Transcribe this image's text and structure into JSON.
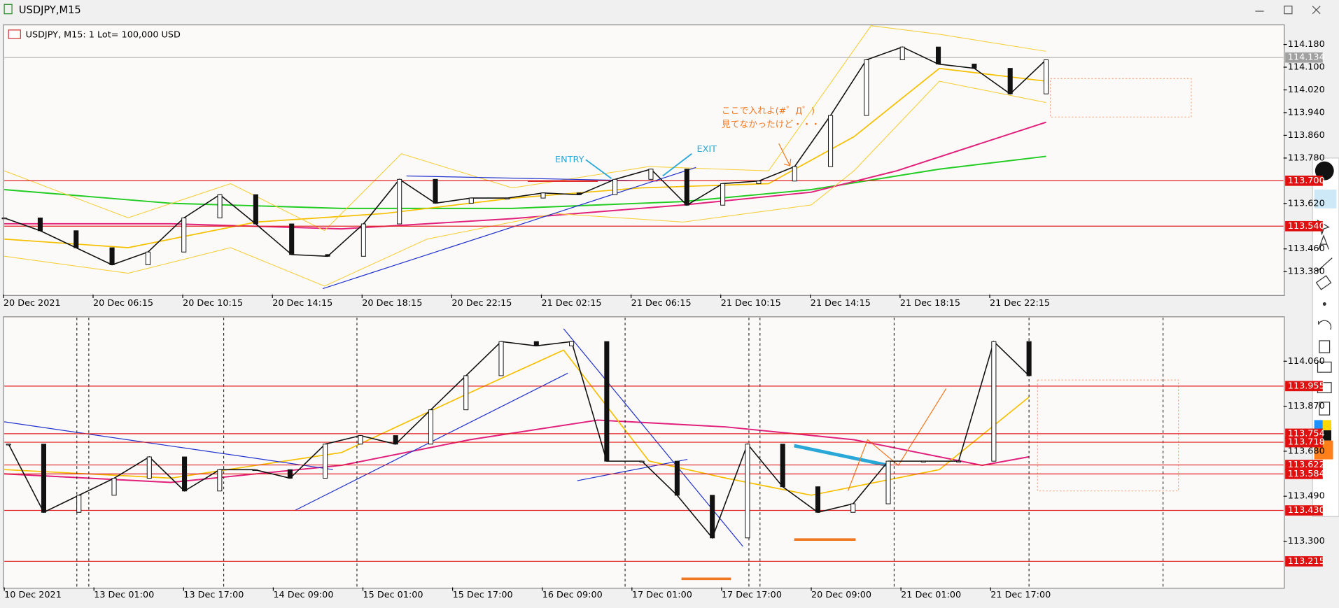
{
  "window": {
    "title": "USDJPY,M15"
  },
  "chart_header": "USDJPY, M15:  1 Lot= 100,000 USD",
  "annotations": {
    "entry": "ENTRY",
    "exit": "EXIT",
    "note_line1": "ここで入れよ(#゜Д゜)",
    "note_line2": "見てなかったけど・・・"
  },
  "panels": [
    {
      "ylim": [
        113.299,
        114.246
      ],
      "yticks": [
        {
          "value": 114.18,
          "label": "114.180"
        },
        {
          "value": 114.1,
          "label": "114.100"
        },
        {
          "value": 114.02,
          "label": "114.020"
        },
        {
          "value": 113.94,
          "label": "113.940"
        },
        {
          "value": 113.86,
          "label": "113.860"
        },
        {
          "value": 113.78,
          "label": "113.780"
        },
        {
          "value": 113.62,
          "label": "113.620"
        },
        {
          "value": 113.46,
          "label": "113.460"
        },
        {
          "value": 113.38,
          "label": "113.380"
        }
      ],
      "levels": [
        {
          "value": 113.7,
          "label": "113.700"
        },
        {
          "value": 113.54,
          "label": "113.540"
        }
      ],
      "current": {
        "value": 114.134,
        "label": "114.134"
      },
      "time_labels": [
        "20 Dec 2021",
        "20 Dec 06:15",
        "20 Dec 10:15",
        "20 Dec 14:15",
        "20 Dec 18:15",
        "20 Dec 22:15",
        "21 Dec 02:15",
        "21 Dec 06:15",
        "21 Dec 10:15",
        "21 Dec 14:15",
        "21 Dec 18:15",
        "21 Dec 22:15"
      ],
      "close": [
        113.569,
        113.524,
        113.464,
        113.404,
        113.449,
        113.569,
        113.651,
        113.548,
        113.44,
        113.434,
        113.548,
        113.705,
        113.621,
        113.639,
        113.639,
        113.657,
        113.651,
        113.705,
        113.741,
        113.614,
        113.69,
        113.699,
        113.75,
        113.93,
        114.126,
        114.171,
        114.111,
        114.096,
        114.006,
        114.126
      ]
    },
    {
      "ylim": [
        113.105,
        114.244
      ],
      "yticks": [
        {
          "value": 114.06,
          "label": "114.060"
        },
        {
          "value": 113.87,
          "label": "113.870"
        },
        {
          "value": 113.68,
          "label": "113.680"
        },
        {
          "value": 113.49,
          "label": "113.490"
        },
        {
          "value": 113.3,
          "label": "113.300"
        }
      ],
      "levels": [
        {
          "value": 113.955,
          "label": "113.955"
        },
        {
          "value": 113.754,
          "label": "113.754"
        },
        {
          "value": 113.718,
          "label": "113.718"
        },
        {
          "value": 113.622,
          "label": "113.622"
        },
        {
          "value": 113.584,
          "label": "113.584"
        },
        {
          "value": 113.43,
          "label": "113.430"
        },
        {
          "value": 113.215,
          "label": "113.215"
        }
      ],
      "time_labels": [
        "10 Dec 2021",
        "13 Dec 01:00",
        "13 Dec 17:00",
        "14 Dec 09:00",
        "15 Dec 01:00",
        "15 Dec 17:00",
        "16 Dec 09:00",
        "17 Dec 01:00",
        "17 Dec 17:00",
        "20 Dec 09:00",
        "21 Dec 01:00",
        "21 Dec 17:00"
      ],
      "close": [
        113.71,
        113.422,
        113.494,
        113.566,
        113.656,
        113.512,
        113.602,
        113.602,
        113.566,
        113.71,
        113.746,
        113.71,
        113.855,
        113.999,
        114.143,
        114.125,
        114.143,
        113.638,
        113.638,
        113.494,
        113.314,
        113.71,
        113.53,
        113.422,
        113.458,
        113.638,
        113.638,
        113.638,
        114.143,
        113.999
      ]
    }
  ]
}
